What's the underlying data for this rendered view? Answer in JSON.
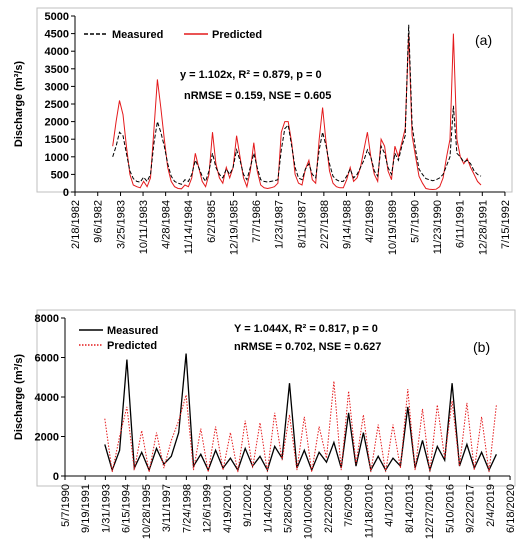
{
  "chart_data": [
    {
      "type": "line",
      "panel_label": "(a)",
      "ylabel": "Discharge (m³/s)",
      "ylim": [
        0,
        5000
      ],
      "yticks": [
        "0",
        "500",
        "1000",
        "1500",
        "2000",
        "2500",
        "3000",
        "3500",
        "4000",
        "4500",
        "5000"
      ],
      "xticks": [
        "2/18/1982",
        "9/6/1982",
        "3/25/1983",
        "10/11/1983",
        "4/28/1984",
        "11/14/1984",
        "6/2/1985",
        "12/19/1985",
        "7/7/1986",
        "1/23/1987",
        "8/11/1987",
        "2/27/1988",
        "9/14/1988",
        "4/2/1989",
        "10/19/1989",
        "5/7/1990",
        "11/23/1990",
        "6/11/1991",
        "12/28/1991",
        "7/15/1992"
      ],
      "annotations": [
        "y = 1.102x, R² = 0.879, p = 0",
        "nRMSE = 0.159, NSE = 0.605"
      ],
      "grid": false,
      "legend_position": "top-left",
      "series": [
        {
          "name": "Measured",
          "color": "#000000",
          "dash": "dashed",
          "x": [
            "1/1983",
            "2/1983",
            "3/1983",
            "4/1983",
            "5/1983",
            "6/1983",
            "7/1983",
            "8/1983",
            "9/1983",
            "10/1983",
            "11/1983",
            "12/1983",
            "1/1984",
            "2/1984",
            "3/1984",
            "4/1984",
            "5/1984",
            "6/1984",
            "7/1984",
            "8/1984",
            "9/1984",
            "10/1984",
            "11/1984",
            "12/1984",
            "1/1985",
            "2/1985",
            "3/1985",
            "4/1985",
            "5/1985",
            "6/1985",
            "7/1985",
            "8/1985",
            "9/1985",
            "10/1985",
            "11/1985",
            "12/1985",
            "1/1986",
            "2/1986",
            "3/1986",
            "4/1986",
            "5/1986",
            "6/1986",
            "7/1986",
            "8/1986",
            "9/1986",
            "10/1986",
            "11/1986",
            "12/1986",
            "1/1987",
            "2/1987",
            "3/1987",
            "4/1987",
            "5/1987",
            "6/1987",
            "7/1987",
            "8/1987",
            "9/1987",
            "10/1987",
            "11/1987",
            "12/1987",
            "1/1988",
            "2/1988",
            "3/1988",
            "4/1988",
            "5/1988",
            "6/1988",
            "7/1988",
            "8/1988",
            "9/1988",
            "10/1988",
            "11/1988",
            "12/1988",
            "1/1989",
            "2/1989",
            "3/1989",
            "4/1989",
            "5/1989",
            "6/1989",
            "7/1989",
            "8/1989",
            "9/1989",
            "10/1989",
            "11/1989",
            "12/1989",
            "1/1990",
            "2/1990",
            "3/1990",
            "4/1990",
            "5/1990",
            "6/1990",
            "7/1990",
            "8/1990",
            "9/1990",
            "10/1990",
            "11/1990",
            "12/1990",
            "1/1991",
            "2/1991",
            "3/1991",
            "4/1991",
            "5/1991",
            "6/1991",
            "7/1991",
            "8/1991",
            "9/1991",
            "10/1991",
            "11/1991",
            "12/1991"
          ],
          "values": [
            1000,
            1300,
            1700,
            1600,
            1100,
            600,
            380,
            300,
            280,
            420,
            300,
            500,
            1400,
            2000,
            1700,
            1300,
            800,
            450,
            300,
            250,
            220,
            350,
            300,
            500,
            900,
            700,
            450,
            300,
            600,
            1100,
            700,
            500,
            400,
            650,
            500,
            700,
            1200,
            900,
            500,
            350,
            700,
            1100,
            700,
            350,
            300,
            280,
            300,
            320,
            350,
            1200,
            1800,
            1900,
            1300,
            700,
            400,
            350,
            650,
            800,
            500,
            400,
            1200,
            1700,
            1300,
            800,
            450,
            350,
            300,
            300,
            450,
            650,
            400,
            500,
            700,
            900,
            1200,
            1000,
            600,
            450,
            1300,
            1100,
            700,
            500,
            1100,
            900,
            1300,
            1600,
            4750,
            1900,
            1200,
            650,
            500,
            380,
            350,
            320,
            350,
            400,
            500,
            750,
            1000,
            2450,
            1100,
            1000,
            850,
            900,
            800,
            600,
            500,
            450
          ]
        },
        {
          "name": "Predicted",
          "color": "#e41a1c",
          "dash": "solid",
          "x": [
            "1/1983",
            "2/1983",
            "3/1983",
            "4/1983",
            "5/1983",
            "6/1983",
            "7/1983",
            "8/1983",
            "9/1983",
            "10/1983",
            "11/1983",
            "12/1983",
            "1/1984",
            "2/1984",
            "3/1984",
            "4/1984",
            "5/1984",
            "6/1984",
            "7/1984",
            "8/1984",
            "9/1984",
            "10/1984",
            "11/1984",
            "12/1984",
            "1/1985",
            "2/1985",
            "3/1985",
            "4/1985",
            "5/1985",
            "6/1985",
            "7/1985",
            "8/1985",
            "9/1985",
            "10/1985",
            "11/1985",
            "12/1985",
            "1/1986",
            "2/1986",
            "3/1986",
            "4/1986",
            "5/1986",
            "6/1986",
            "7/1986",
            "8/1986",
            "9/1986",
            "10/1986",
            "11/1986",
            "12/1986",
            "1/1987",
            "2/1987",
            "3/1987",
            "4/1987",
            "5/1987",
            "6/1987",
            "7/1987",
            "8/1987",
            "9/1987",
            "10/1987",
            "11/1987",
            "12/1987",
            "1/1988",
            "2/1988",
            "3/1988",
            "4/1988",
            "5/1988",
            "6/1988",
            "7/1988",
            "8/1988",
            "9/1988",
            "10/1988",
            "11/1988",
            "12/1988",
            "1/1989",
            "2/1989",
            "3/1989",
            "4/1989",
            "5/1989",
            "6/1989",
            "7/1989",
            "8/1989",
            "9/1989",
            "10/1989",
            "11/1989",
            "12/1989",
            "1/1990",
            "2/1990",
            "3/1990",
            "4/1990",
            "5/1990",
            "6/1990",
            "7/1990",
            "8/1990",
            "9/1990",
            "10/1990",
            "11/1990",
            "12/1990",
            "1/1991",
            "2/1991",
            "3/1991",
            "4/1991",
            "5/1991",
            "6/1991",
            "7/1991",
            "8/1991",
            "9/1991",
            "10/1991",
            "11/1991",
            "12/1991"
          ],
          "values": [
            1300,
            2000,
            2600,
            2200,
            1300,
            500,
            200,
            150,
            120,
            300,
            150,
            400,
            1800,
            3200,
            2400,
            1500,
            700,
            300,
            150,
            100,
            90,
            200,
            150,
            400,
            1100,
            700,
            300,
            150,
            500,
            1700,
            800,
            400,
            250,
            700,
            400,
            700,
            1600,
            1000,
            400,
            150,
            600,
            1400,
            600,
            200,
            120,
            100,
            120,
            150,
            250,
            1700,
            2000,
            2000,
            1400,
            500,
            250,
            200,
            650,
            900,
            350,
            250,
            1500,
            2400,
            1400,
            600,
            250,
            150,
            120,
            120,
            350,
            700,
            300,
            400,
            700,
            1200,
            1700,
            1000,
            500,
            300,
            1500,
            1300,
            600,
            350,
            1300,
            1000,
            1400,
            1800,
            4500,
            1600,
            1000,
            450,
            250,
            100,
            80,
            70,
            80,
            150,
            400,
            1000,
            1500,
            4500,
            1500,
            1000,
            800,
            950,
            700,
            500,
            300,
            200
          ]
        }
      ]
    },
    {
      "type": "line",
      "panel_label": "(b)",
      "ylabel": "Discharge (m³/s)",
      "ylim": [
        0,
        8000
      ],
      "yticks": [
        "0",
        "2000",
        "4000",
        "6000",
        "8000"
      ],
      "xticks": [
        "5/7/1990",
        "9/19/1991",
        "1/31/1993",
        "6/15/1994",
        "10/28/1995",
        "3/11/1997",
        "7/24/1998",
        "12/6/1999",
        "4/19/2001",
        "9/1/2002",
        "1/14/2004",
        "5/28/2005",
        "10/10/2006",
        "2/22/2008",
        "7/6/2009",
        "11/18/2010",
        "4/1/2012",
        "8/14/2013",
        "12/27/2014",
        "5/10/2016",
        "9/22/2017",
        "2/4/2019",
        "6/18/2020"
      ],
      "annotations": [
        "Y = 1.044X, R² = 0.817, p = 0",
        "nRMSE = 0.702, NSE = 0.627"
      ],
      "grid": false,
      "legend_position": "top-left",
      "series": [
        {
          "name": "Measured",
          "color": "#000000",
          "dash": "solid",
          "x": [
            "1993-01",
            "1993-07",
            "1994-01",
            "1994-07",
            "1995-01",
            "1995-07",
            "1996-01",
            "1996-07",
            "1997-01",
            "1997-07",
            "1998-01",
            "1998-07",
            "1999-01",
            "1999-07",
            "2000-01",
            "2000-07",
            "2001-01",
            "2001-07",
            "2002-01",
            "2002-07",
            "2003-01",
            "2003-07",
            "2004-01",
            "2004-07",
            "2005-01",
            "2005-07",
            "2006-01",
            "2006-07",
            "2007-01",
            "2007-07",
            "2008-01",
            "2008-07",
            "2009-01",
            "2009-07",
            "2010-01",
            "2010-07",
            "2011-01",
            "2011-07",
            "2012-01",
            "2012-07",
            "2013-01",
            "2013-07",
            "2014-01",
            "2014-07",
            "2015-01",
            "2015-07",
            "2016-01",
            "2016-07",
            "2017-01",
            "2017-07",
            "2018-01",
            "2018-07",
            "2019-01",
            "2019-07"
          ],
          "values": [
            1600,
            300,
            1300,
            5900,
            400,
            1200,
            300,
            1400,
            600,
            1000,
            2200,
            6200,
            500,
            1100,
            300,
            1300,
            400,
            900,
            300,
            1400,
            500,
            1000,
            300,
            1500,
            900,
            4700,
            400,
            1300,
            300,
            1200,
            700,
            1700,
            400,
            3200,
            500,
            2200,
            300,
            1000,
            300,
            900,
            500,
            3500,
            400,
            1800,
            300,
            1500,
            800,
            4700,
            500,
            1600,
            400,
            1200,
            300,
            1100
          ]
        },
        {
          "name": "Predicted",
          "color": "#e41a1c",
          "dash": "dotted",
          "x": [
            "1993-01",
            "1993-07",
            "1994-01",
            "1994-07",
            "1995-01",
            "1995-07",
            "1996-01",
            "1996-07",
            "1997-01",
            "1997-07",
            "1998-01",
            "1998-07",
            "1999-01",
            "1999-07",
            "2000-01",
            "2000-07",
            "2001-01",
            "2001-07",
            "2002-01",
            "2002-07",
            "2003-01",
            "2003-07",
            "2004-01",
            "2004-07",
            "2005-01",
            "2005-07",
            "2006-01",
            "2006-07",
            "2007-01",
            "2007-07",
            "2008-01",
            "2008-07",
            "2009-01",
            "2009-07",
            "2010-01",
            "2010-07",
            "2011-01",
            "2011-07",
            "2012-01",
            "2012-07",
            "2013-01",
            "2013-07",
            "2014-01",
            "2014-07",
            "2015-01",
            "2015-07",
            "2016-01",
            "2016-07",
            "2017-01",
            "2017-07",
            "2018-01",
            "2018-07",
            "2019-01",
            "2019-07"
          ],
          "values": [
            2900,
            200,
            2000,
            3500,
            300,
            2300,
            200,
            2200,
            400,
            1800,
            2800,
            4100,
            300,
            2400,
            200,
            2500,
            300,
            2200,
            200,
            2800,
            400,
            2700,
            200,
            3200,
            800,
            3100,
            300,
            3000,
            200,
            2500,
            900,
            4800,
            300,
            4300,
            600,
            3100,
            200,
            2600,
            200,
            2600,
            400,
            4400,
            300,
            3400,
            200,
            3600,
            900,
            3800,
            500,
            3700,
            300,
            3000,
            200,
            3600
          ]
        }
      ]
    }
  ]
}
